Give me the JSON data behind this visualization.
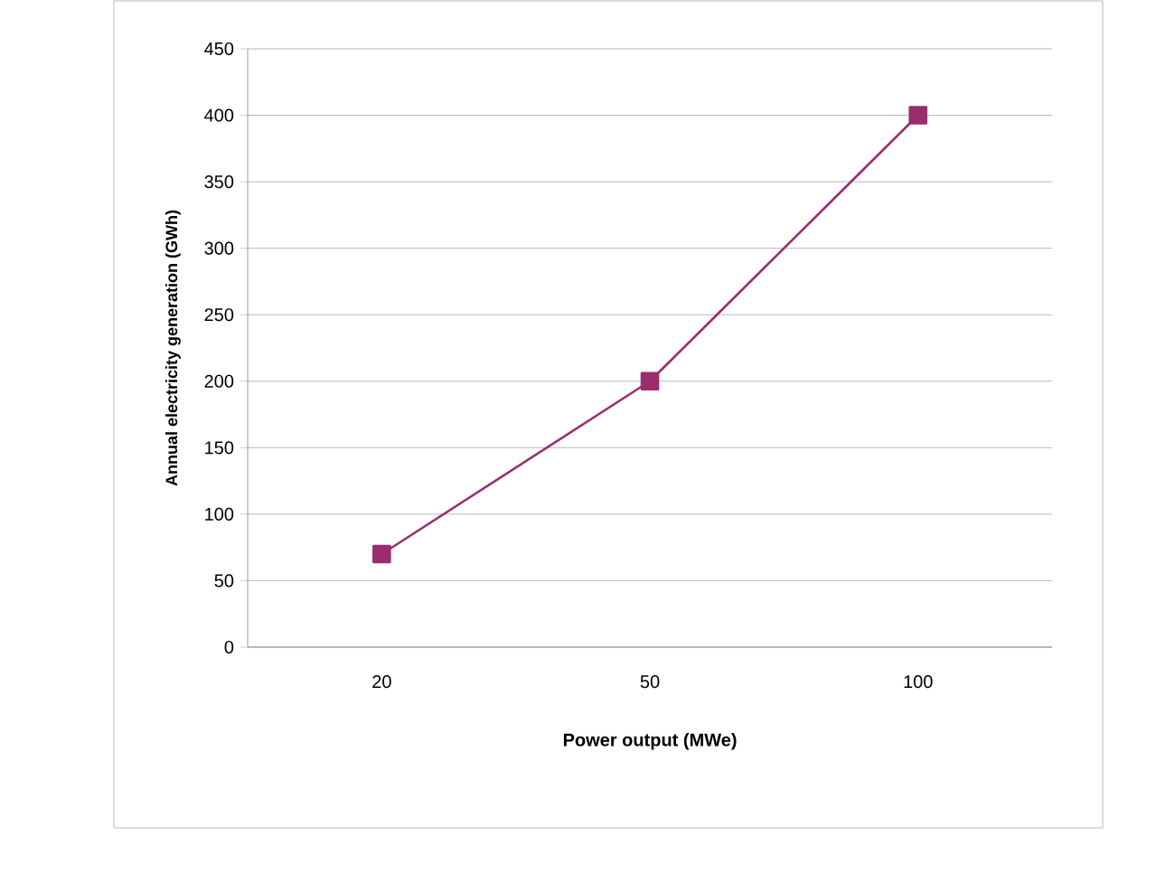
{
  "chart_data": {
    "type": "line",
    "xlabel": "Power output (MWe)",
    "ylabel": "Annual electricity generation (GWh)",
    "categories": [
      "20",
      "50",
      "100"
    ],
    "series": [
      {
        "color": "#9b2d6e",
        "values": [
          70,
          200,
          400
        ]
      }
    ],
    "ylim": [
      0,
      450
    ],
    "yticks": [
      0,
      50,
      100,
      150,
      200,
      250,
      300,
      350,
      400,
      450
    ],
    "grid": "y",
    "marker": "square",
    "line_style": "solid"
  }
}
